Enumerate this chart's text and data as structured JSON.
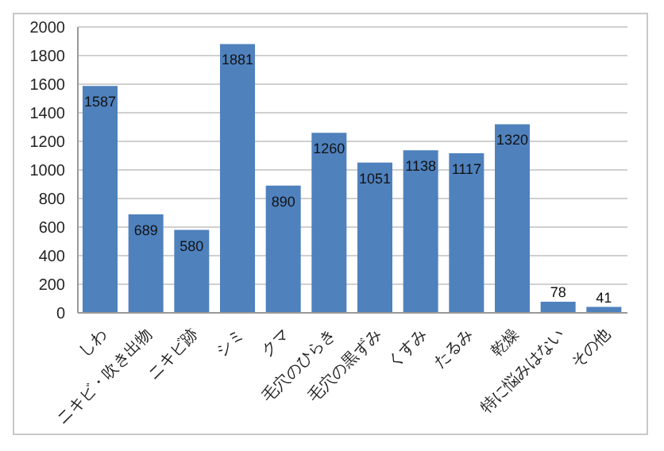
{
  "chart_data": {
    "type": "bar",
    "categories": [
      "しわ",
      "ニキビ・吹き出物",
      "ニキビ跡",
      "シミ",
      "クマ",
      "毛穴のひらき",
      "毛穴の黒ずみ",
      "くすみ",
      "たるみ",
      "乾燥",
      "特に悩みはない",
      "その他"
    ],
    "values": [
      1587,
      689,
      580,
      1881,
      890,
      1260,
      1051,
      1138,
      1117,
      1320,
      78,
      41
    ],
    "color": "#4f81bd",
    "ylim": [
      0,
      2000
    ],
    "yticks": [
      0,
      200,
      400,
      600,
      800,
      1000,
      1200,
      1400,
      1600,
      1800,
      2000
    ],
    "grid": "y",
    "data_labels": true,
    "legend": false
  }
}
